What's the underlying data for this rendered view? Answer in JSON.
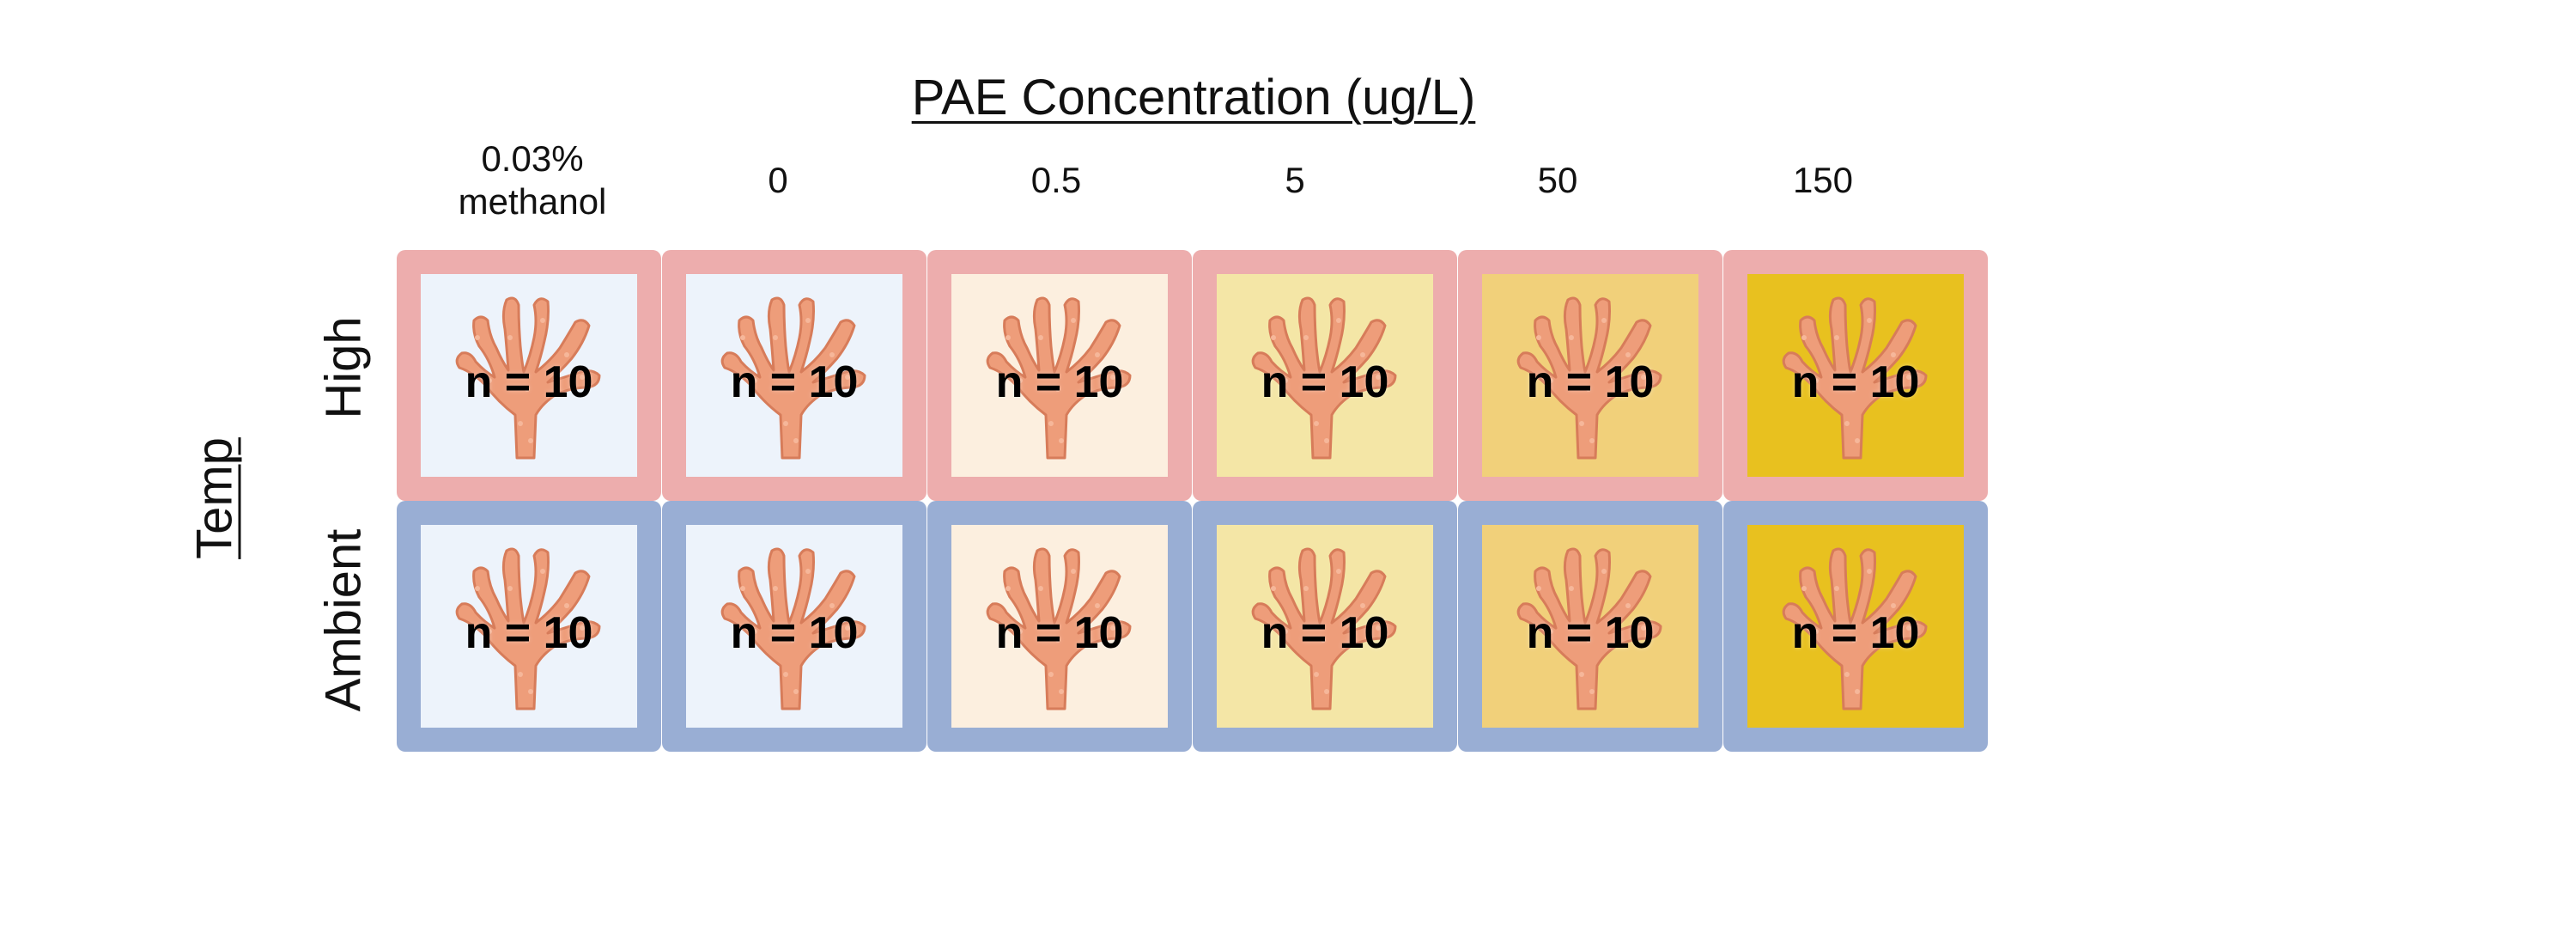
{
  "title": "PAE Concentration (ug/L)",
  "temp_axis_label": "Temp",
  "concentrations": [
    {
      "label": "0.03%\nmethanol",
      "tint": "#edf3fb"
    },
    {
      "label": "0",
      "tint": "#edf3fb"
    },
    {
      "label": "0.5",
      "tint": "#fcefdf"
    },
    {
      "label": "5",
      "tint": "#f4e6a6"
    },
    {
      "label": "50",
      "tint": "#f1d07a"
    },
    {
      "label": "150",
      "tint": "#e8c11f"
    }
  ],
  "temperatures": [
    {
      "label": "High",
      "border_color": "#edadad"
    },
    {
      "label": "Ambient",
      "border_color": "#99aed4"
    }
  ],
  "cells": [
    [
      "n = 10",
      "n = 10",
      "n = 10",
      "n = 10",
      "n = 10",
      "n = 10"
    ],
    [
      "n = 10",
      "n = 10",
      "n = 10",
      "n = 10",
      "n = 10",
      "n = 10"
    ]
  ],
  "icon": "coral-icon"
}
